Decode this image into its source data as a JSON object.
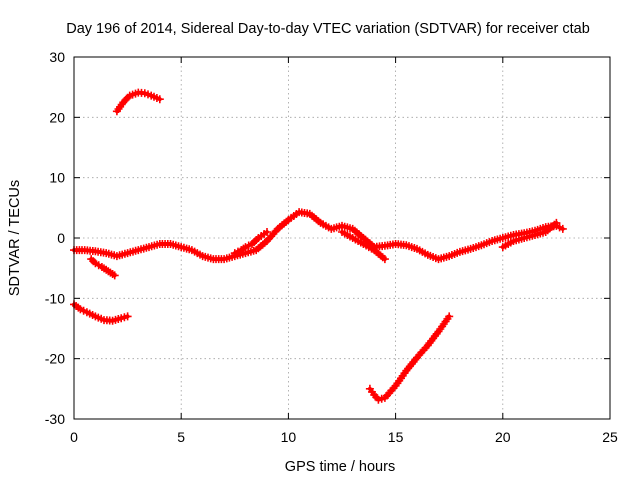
{
  "chart_data": {
    "type": "scatter",
    "title": "Day 196 of 2014, Sidereal Day-to-day VTEC variation (SDTVAR) for receiver ctab",
    "xlabel": "GPS time / hours",
    "ylabel": "SDTVAR / TECUs",
    "xlim": [
      0,
      25
    ],
    "ylim": [
      -30,
      30
    ],
    "xticks": [
      "0",
      "5",
      "10",
      "15",
      "20",
      "25"
    ],
    "yticks": [
      "-30",
      "-20",
      "-10",
      "0",
      "10",
      "20",
      "30"
    ],
    "grid": true,
    "marker": "plus",
    "series_color": "#ff0000",
    "series": [
      {
        "name": "segment-main-1",
        "x": [
          0.0,
          0.5,
          1.0,
          1.5,
          2.0,
          2.5,
          3.0,
          3.5,
          4.0,
          4.5,
          5.0,
          5.5,
          6.0,
          6.5,
          7.0,
          7.5,
          8.0,
          8.5,
          9.0,
          9.5,
          10.0,
          10.5,
          11.0,
          11.5,
          12.0,
          12.5,
          13.0,
          13.5,
          14.0,
          14.5,
          15.0,
          15.5,
          16.0,
          16.5,
          17.0,
          17.5,
          18.0,
          18.5,
          19.0,
          19.5,
          20.0,
          20.5,
          21.0,
          21.5,
          22.0,
          22.5,
          22.8
        ],
        "y": [
          -2.0,
          -2.0,
          -2.2,
          -2.5,
          -3.0,
          -2.5,
          -2.0,
          -1.5,
          -1.0,
          -1.0,
          -1.5,
          -2.0,
          -3.0,
          -3.5,
          -3.5,
          -3.0,
          -2.5,
          -2.0,
          -0.5,
          1.5,
          3.0,
          4.3,
          4.0,
          2.5,
          1.5,
          2.0,
          1.5,
          0.0,
          -1.5,
          -1.3,
          -1.0,
          -1.2,
          -1.8,
          -2.8,
          -3.5,
          -3.0,
          -2.3,
          -1.8,
          -1.2,
          -0.5,
          0.0,
          0.5,
          0.8,
          1.2,
          1.8,
          2.0,
          1.5
        ]
      },
      {
        "name": "segment-noise-a",
        "x": [
          0.8,
          1.0,
          1.3,
          1.6,
          1.9
        ],
        "y": [
          -3.5,
          -4.2,
          -4.8,
          -5.5,
          -6.2
        ]
      },
      {
        "name": "segment-noise-b",
        "x": [
          7.5,
          7.8,
          8.0,
          8.3,
          8.6,
          9.0
        ],
        "y": [
          -2.5,
          -2.0,
          -1.5,
          -1.0,
          0.0,
          1.0
        ]
      },
      {
        "name": "segment-noise-c",
        "x": [
          12.5,
          13.0,
          13.5,
          14.0,
          14.5
        ],
        "y": [
          1.0,
          0.0,
          -1.0,
          -2.0,
          -3.5
        ]
      },
      {
        "name": "segment-noise-d",
        "x": [
          20.0,
          20.5,
          21.0,
          21.5,
          22.0,
          22.5
        ],
        "y": [
          -1.5,
          -0.5,
          0.0,
          0.5,
          1.0,
          2.5
        ]
      },
      {
        "name": "segment-upper",
        "x": [
          2.0,
          2.3,
          2.6,
          3.0,
          3.3,
          3.6,
          4.0
        ],
        "y": [
          21.0,
          22.5,
          23.6,
          24.1,
          24.0,
          23.6,
          23.0
        ]
      },
      {
        "name": "segment-lower-left",
        "x": [
          0.0,
          0.3,
          0.6,
          1.0,
          1.4,
          1.8,
          2.2,
          2.5
        ],
        "y": [
          -11.0,
          -11.8,
          -12.3,
          -13.0,
          -13.6,
          -13.7,
          -13.3,
          -13.0
        ]
      },
      {
        "name": "segment-lower-right",
        "x": [
          13.8,
          14.0,
          14.2,
          14.5,
          15.0,
          15.5,
          16.0,
          16.5,
          17.0,
          17.5
        ],
        "y": [
          -25.0,
          -26.0,
          -26.8,
          -26.5,
          -24.5,
          -22.0,
          -19.8,
          -17.8,
          -15.5,
          -13.0
        ]
      }
    ]
  }
}
